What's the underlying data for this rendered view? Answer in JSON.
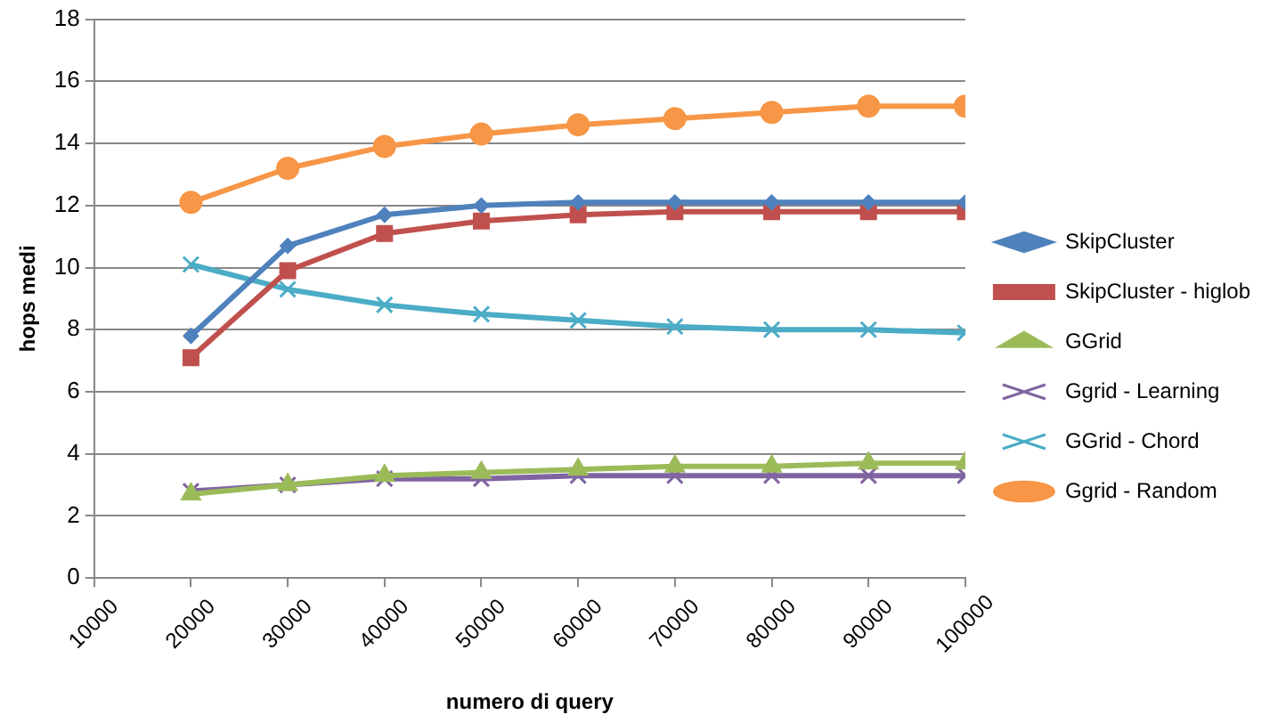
{
  "chart_data": {
    "type": "line",
    "xlabel": "numero di query",
    "ylabel": "hops medi",
    "x": [
      20000,
      30000,
      40000,
      50000,
      60000,
      70000,
      80000,
      90000,
      100000
    ],
    "xlim": [
      10000,
      100000
    ],
    "xticks": [
      10000,
      20000,
      30000,
      40000,
      50000,
      60000,
      70000,
      80000,
      90000,
      100000
    ],
    "ylim": [
      0,
      18
    ],
    "yticks": [
      0,
      2,
      4,
      6,
      8,
      10,
      12,
      14,
      16,
      18
    ],
    "grid": "y",
    "legend": "right",
    "series": [
      {
        "name": "SkipCluster",
        "color": "#4f81bd",
        "marker": "diamond",
        "values": [
          7.8,
          10.7,
          11.7,
          12.0,
          12.1,
          12.1,
          12.1,
          12.1,
          12.1
        ]
      },
      {
        "name": "SkipCluster - higlob",
        "color": "#c0504d",
        "marker": "square",
        "values": [
          7.1,
          9.9,
          11.1,
          11.5,
          11.7,
          11.8,
          11.8,
          11.8,
          11.8
        ]
      },
      {
        "name": "GGrid",
        "color": "#9bbb59",
        "marker": "triangle",
        "values": [
          2.7,
          3.0,
          3.3,
          3.4,
          3.5,
          3.6,
          3.6,
          3.7,
          3.7
        ]
      },
      {
        "name": "Ggrid - Learning",
        "color": "#8064a2",
        "marker": "cross",
        "values": [
          2.8,
          3.0,
          3.2,
          3.2,
          3.3,
          3.3,
          3.3,
          3.3,
          3.3
        ]
      },
      {
        "name": "GGrid - Chord",
        "color": "#4bacc6",
        "marker": "cross",
        "values": [
          10.1,
          9.3,
          8.8,
          8.5,
          8.3,
          8.1,
          8.0,
          8.0,
          7.9
        ]
      },
      {
        "name": "Ggrid - Random",
        "color": "#f79646",
        "marker": "circle",
        "values": [
          12.1,
          13.2,
          13.9,
          14.3,
          14.6,
          14.8,
          15.0,
          15.2,
          15.2
        ]
      }
    ]
  }
}
